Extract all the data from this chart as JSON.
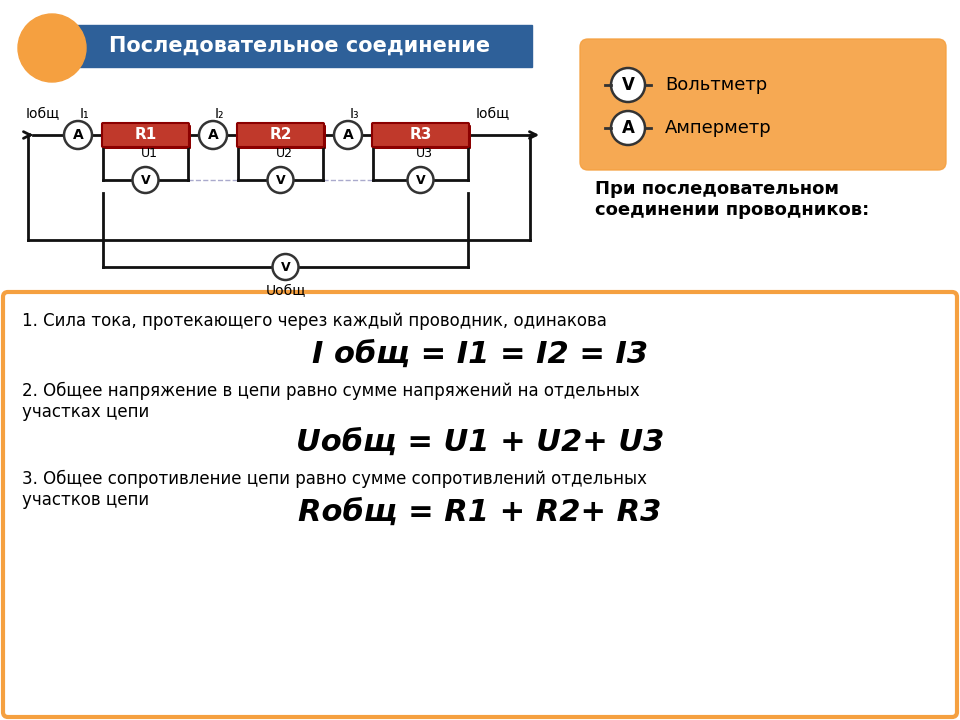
{
  "title": "Последовательное соединение",
  "title_bg": "#2E6099",
  "title_text_color": "#FFFFFF",
  "orange_color": "#F5A040",
  "bg_color": "#FFFFFF",
  "bottom_box_border": "#F5A040",
  "bottom_box_bg": "#FFFFFF",
  "red_resistor": "#C0392B",
  "resistor_dark": "#8B0000",
  "circuit_line_color": "#111111",
  "text1": "1. Сила тока, протекающего через каждый проводник, одинакова",
  "formula1": "I общ = I1 = I2 = I3",
  "text2": "2. Общее напряжение в цепи равно сумме напряжений на отдельных\nучастках цепи",
  "formula2": "Uобщ = U1 + U2+ U3",
  "text3": "3. Общее сопротивление цепи равно сумме сопротивлений отдельных\nучастков цепи",
  "formula3": "Rобщ = R1 + R2+ R3",
  "voltmeter_label": "Вольтметр",
  "ammeter_label": "Амперметр",
  "side_text": "При последовательном\nсоединении проводников:"
}
